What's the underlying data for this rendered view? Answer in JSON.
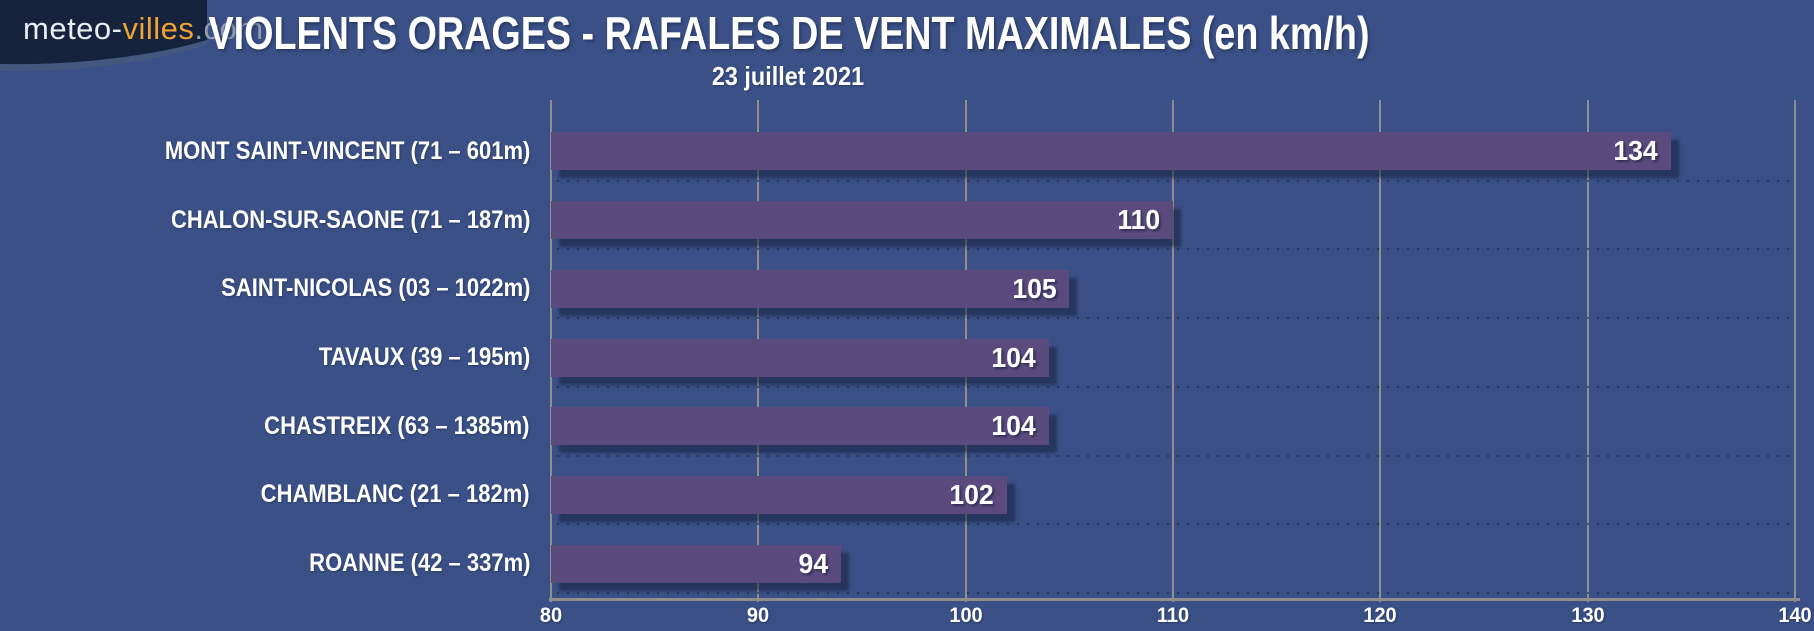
{
  "logo": {
    "part1": "meteo-",
    "part2": "villes",
    "part3": ".com"
  },
  "header": {
    "title": "VIOLENTS ORAGES - RAFALES DE VENT MAXIMALES (en km/h)",
    "subtitle": "23 juillet 2021"
  },
  "colors": {
    "background": "#3a5086",
    "bar": "#5a4a7d",
    "gridline": "#908f8c",
    "logo_bg": "#16233d",
    "logo_accent": "#f0a232",
    "text": "#ffffff"
  },
  "chart_data": {
    "type": "bar",
    "orientation": "horizontal",
    "title": "VIOLENTS ORAGES - RAFALES DE VENT MAXIMALES (en km/h)",
    "subtitle": "23 juillet 2021",
    "unit": "km/h",
    "categories": [
      "MONT SAINT-VINCENT (71 – 601m)",
      "CHALON-SUR-SAONE (71 – 187m)",
      "SAINT-NICOLAS (03 – 1022m)",
      "TAVAUX (39 – 195m)",
      "CHASTREIX (63 – 1385m)",
      "CHAMBLANC (21 – 182m)",
      "ROANNE (42 – 337m)"
    ],
    "values": [
      134,
      110,
      105,
      104,
      104,
      102,
      94
    ],
    "xlabel": "",
    "ylabel": "",
    "xlim": [
      80,
      140
    ],
    "xticks": [
      80,
      90,
      100,
      110,
      120,
      130,
      140
    ],
    "grid": true,
    "legend": false
  }
}
